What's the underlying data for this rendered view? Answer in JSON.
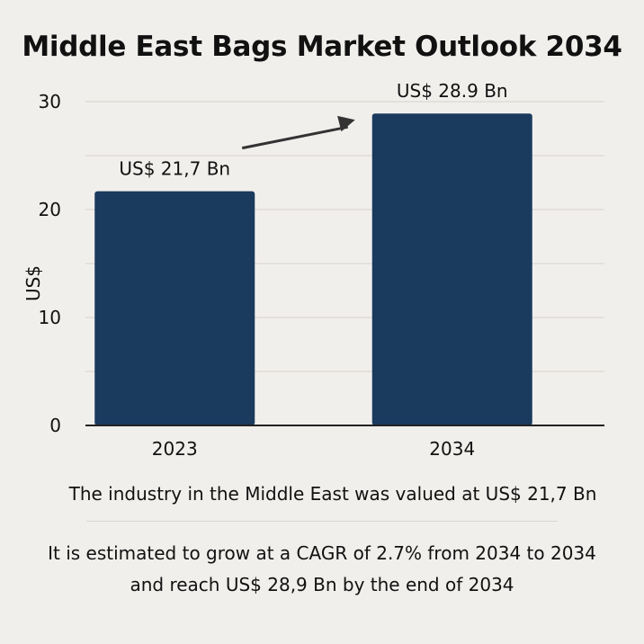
{
  "chart_data": {
    "type": "bar",
    "title": "Middle East Bags Market Outlook 2034",
    "ylabel": "US$",
    "xlabel": "",
    "categories": [
      "2023",
      "2034"
    ],
    "values": [
      21.7,
      28.9
    ],
    "data_labels": [
      "US$ 21,7 Bn",
      "US$ 28.9 Bn"
    ],
    "yticks": [
      0,
      10,
      20,
      30
    ],
    "ylim": [
      0,
      30
    ],
    "bar_color": "#1a3a5e",
    "grid": true,
    "annotation": "growth arrow from 2023 bar toward 2034 bar"
  },
  "description": {
    "line1": "The industry in the Middle East was valued at US$ 21,7 Bn",
    "line2": "It is estimated to grow at a CAGR of 2.7% from 2034 to 2034 and reach US$ 28,9 Bn by the end of 2034"
  }
}
